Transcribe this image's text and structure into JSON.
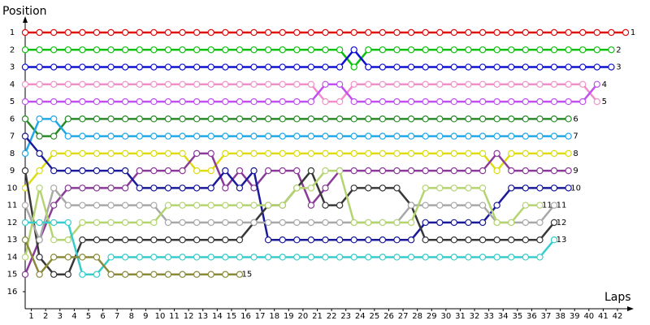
{
  "chart_data": {
    "type": "line",
    "y_label": "Position",
    "x_label": "Laps",
    "x": [
      0,
      1,
      2,
      3,
      4,
      5,
      6,
      7,
      8,
      9,
      10,
      11,
      12,
      13,
      14,
      15,
      16,
      17,
      18,
      19,
      20,
      21,
      22,
      23,
      24,
      25,
      26,
      27,
      28,
      29,
      30,
      31,
      32,
      33,
      34,
      35,
      36,
      37,
      38,
      39,
      40,
      41,
      42
    ],
    "xlim": [
      0,
      42
    ],
    "xticks": [
      1,
      2,
      3,
      4,
      5,
      6,
      7,
      8,
      9,
      10,
      11,
      12,
      13,
      14,
      15,
      16,
      17,
      18,
      19,
      20,
      21,
      22,
      23,
      24,
      25,
      26,
      27,
      28,
      29,
      30,
      31,
      32,
      33,
      34,
      35,
      36,
      37,
      38,
      39,
      40,
      41,
      42
    ],
    "ylim": [
      1,
      16
    ],
    "inverted": true,
    "yticks": [
      1,
      2,
      3,
      4,
      5,
      6,
      7,
      8,
      9,
      10,
      11,
      12,
      13,
      14,
      15,
      16
    ],
    "series": [
      {
        "color": "#e01010",
        "values": [
          1,
          1,
          1,
          1,
          1,
          1,
          1,
          1,
          1,
          1,
          1,
          1,
          1,
          1,
          1,
          1,
          1,
          1,
          1,
          1,
          1,
          1,
          1,
          1,
          1,
          1,
          1,
          1,
          1,
          1,
          1,
          1,
          1,
          1,
          1,
          1,
          1,
          1,
          1,
          1,
          1,
          1,
          1
        ]
      },
      {
        "color": "#10c010",
        "values": [
          2,
          2,
          2,
          2,
          2,
          2,
          2,
          2,
          2,
          2,
          2,
          2,
          2,
          2,
          2,
          2,
          2,
          2,
          2,
          2,
          2,
          2,
          2,
          3,
          2,
          2,
          2,
          2,
          2,
          2,
          2,
          2,
          2,
          2,
          2,
          2,
          2,
          2,
          2,
          2,
          2,
          2,
          null
        ]
      },
      {
        "color": "#1010d0",
        "values": [
          3,
          3,
          3,
          3,
          3,
          3,
          3,
          3,
          3,
          3,
          3,
          3,
          3,
          3,
          3,
          3,
          3,
          3,
          3,
          3,
          3,
          3,
          3,
          2,
          3,
          3,
          3,
          3,
          3,
          3,
          3,
          3,
          3,
          3,
          3,
          3,
          3,
          3,
          3,
          3,
          3,
          3,
          null
        ]
      },
      {
        "color": "#f090c8",
        "values": [
          4,
          4,
          4,
          4,
          4,
          4,
          4,
          4,
          4,
          4,
          4,
          4,
          4,
          4,
          4,
          4,
          4,
          4,
          4,
          4,
          4,
          5,
          5,
          4,
          4,
          4,
          4,
          4,
          4,
          4,
          4,
          4,
          4,
          4,
          4,
          4,
          4,
          4,
          4,
          4,
          5,
          null,
          null
        ]
      },
      {
        "color": "#c050f0",
        "values": [
          5,
          5,
          5,
          5,
          5,
          5,
          5,
          5,
          5,
          5,
          5,
          5,
          5,
          5,
          5,
          5,
          5,
          5,
          5,
          5,
          5,
          4,
          4,
          5,
          5,
          5,
          5,
          5,
          5,
          5,
          5,
          5,
          5,
          5,
          5,
          5,
          5,
          5,
          5,
          5,
          4,
          null,
          null
        ]
      },
      {
        "color": "#2a8a2a",
        "values": [
          6,
          7,
          7,
          6,
          6,
          6,
          6,
          6,
          6,
          6,
          6,
          6,
          6,
          6,
          6,
          6,
          6,
          6,
          6,
          6,
          6,
          6,
          6,
          6,
          6,
          6,
          6,
          6,
          6,
          6,
          6,
          6,
          6,
          6,
          6,
          6,
          6,
          6,
          6,
          null,
          null,
          null,
          null
        ]
      },
      {
        "color": "#20a8e8",
        "values": [
          8,
          6,
          6,
          7,
          7,
          7,
          7,
          7,
          7,
          7,
          7,
          7,
          7,
          7,
          7,
          7,
          7,
          7,
          7,
          7,
          7,
          7,
          7,
          7,
          7,
          7,
          7,
          7,
          7,
          7,
          7,
          7,
          7,
          7,
          7,
          7,
          7,
          7,
          7,
          null,
          null,
          null,
          null
        ]
      },
      {
        "color": "#dcdc10",
        "values": [
          10,
          9,
          8,
          8,
          8,
          8,
          8,
          8,
          8,
          8,
          8,
          8,
          9,
          9,
          8,
          8,
          8,
          8,
          8,
          8,
          8,
          8,
          8,
          8,
          8,
          8,
          8,
          8,
          8,
          8,
          8,
          8,
          8,
          9,
          8,
          8,
          8,
          8,
          8,
          null,
          null,
          null,
          null
        ]
      },
      {
        "color": "#8a3a98",
        "values": [
          15,
          13,
          11,
          10,
          10,
          10,
          10,
          10,
          9,
          9,
          9,
          9,
          8,
          8,
          10,
          9,
          10,
          9,
          9,
          9,
          11,
          10,
          9,
          9,
          9,
          9,
          9,
          9,
          9,
          9,
          9,
          9,
          9,
          8,
          9,
          9,
          9,
          9,
          9,
          null,
          null,
          null,
          null
        ]
      },
      {
        "color": "#1a1a9a",
        "values": [
          7,
          8,
          9,
          9,
          9,
          9,
          9,
          9,
          10,
          10,
          10,
          10,
          10,
          10,
          9,
          10,
          9,
          13,
          13,
          13,
          13,
          13,
          13,
          13,
          13,
          13,
          13,
          13,
          12,
          12,
          12,
          12,
          12,
          11,
          10,
          10,
          10,
          10,
          10,
          null,
          null,
          null,
          null
        ]
      },
      {
        "color": "#383838",
        "values": [
          9,
          14,
          15,
          15,
          13,
          13,
          13,
          13,
          13,
          13,
          13,
          13,
          13,
          13,
          13,
          13,
          12,
          11,
          11,
          10,
          9,
          11,
          11,
          10,
          10,
          10,
          10,
          11,
          13,
          13,
          13,
          13,
          13,
          13,
          13,
          13,
          13,
          12,
          null,
          null,
          null,
          null,
          null
        ]
      },
      {
        "color": "#a8a8a8",
        "values": [
          11,
          13,
          10,
          11,
          11,
          11,
          11,
          11,
          11,
          11,
          12,
          12,
          12,
          12,
          12,
          12,
          12,
          12,
          12,
          12,
          12,
          12,
          12,
          12,
          12,
          12,
          12,
          11,
          11,
          11,
          11,
          11,
          11,
          12,
          12,
          12,
          12,
          11,
          null,
          null,
          null,
          null,
          null
        ]
      },
      {
        "color": "#b4d470",
        "values": [
          14,
          10,
          13,
          13,
          12,
          12,
          12,
          12,
          12,
          12,
          11,
          11,
          11,
          11,
          11,
          11,
          11,
          11,
          11,
          10,
          10,
          9,
          9,
          12,
          12,
          12,
          12,
          12,
          10,
          10,
          10,
          10,
          10,
          12,
          12,
          11,
          11,
          null,
          null,
          null,
          null,
          null,
          null
        ]
      },
      {
        "color": "#38cccc",
        "values": [
          12,
          12,
          12,
          12,
          15,
          15,
          14,
          14,
          14,
          14,
          14,
          14,
          14,
          14,
          14,
          14,
          14,
          14,
          14,
          14,
          14,
          14,
          14,
          14,
          14,
          14,
          14,
          14,
          14,
          14,
          14,
          14,
          14,
          14,
          14,
          14,
          14,
          13,
          null,
          null,
          null,
          null,
          null
        ]
      },
      {
        "color": "#8a8a3a",
        "values": [
          13,
          15,
          14,
          14,
          14,
          14,
          15,
          15,
          15,
          15,
          15,
          15,
          15,
          15,
          15,
          15,
          null,
          null,
          null,
          null,
          null,
          null,
          null,
          null,
          null,
          null,
          null,
          null,
          null,
          null,
          null,
          null,
          null,
          null,
          null,
          null,
          null,
          null,
          null,
          null,
          null,
          null,
          null
        ]
      }
    ]
  }
}
